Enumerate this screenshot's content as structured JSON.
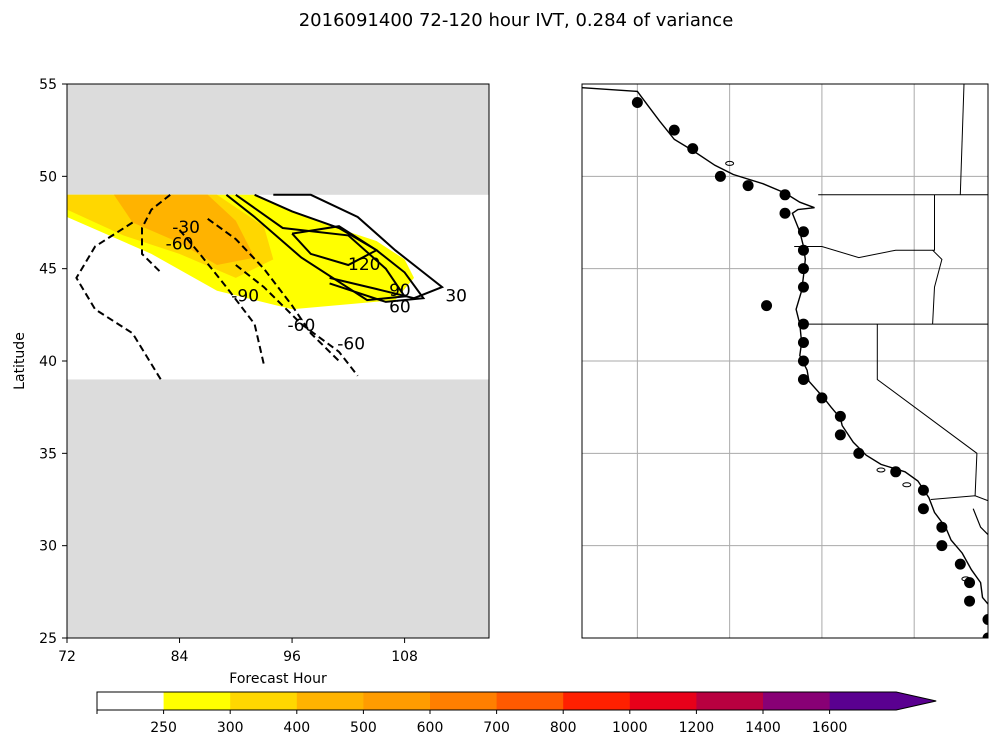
{
  "title": "2016091400 72-120 hour IVT, 0.284 of variance",
  "chart_data": [
    {
      "type": "contour",
      "xlabel": "Forecast Hour",
      "ylabel": "Latitude",
      "xlim": [
        72,
        117
      ],
      "ylim": [
        25,
        55
      ],
      "xticks": [
        "72",
        "84",
        "96",
        "108"
      ],
      "yticks": [
        "25",
        "30",
        "35",
        "40",
        "45",
        "50",
        "55"
      ],
      "data_band_lat": [
        39,
        49
      ],
      "background_color": "#dcdcdc",
      "shading": [
        {
          "level": "250-300",
          "color": "#ffff00",
          "polygon": [
            [
              72,
              49
            ],
            [
              92,
              49
            ],
            [
              99,
              47.5
            ],
            [
              105,
              46.5
            ],
            [
              108,
              45.5
            ],
            [
              109,
              44.5
            ],
            [
              107,
              43.3
            ],
            [
              96,
              42.8
            ],
            [
              88,
              43.8
            ],
            [
              81,
              45.8
            ],
            [
              72,
              47.8
            ]
          ]
        },
        {
          "level": "300-400",
          "color": "#ffd700",
          "polygon": [
            [
              72,
              49
            ],
            [
              88,
              49
            ],
            [
              93,
              47.3
            ],
            [
              94,
              45.5
            ],
            [
              90,
              44.5
            ],
            [
              84,
              45.8
            ],
            [
              78,
              46.8
            ],
            [
              72,
              48.2
            ]
          ]
        },
        {
          "level": "400-500",
          "color": "#ffb300",
          "polygon": [
            [
              77,
              49
            ],
            [
              87,
              49
            ],
            [
              90,
              47.6
            ],
            [
              92,
              45.6
            ],
            [
              88,
              45.2
            ],
            [
              84,
              46.4
            ],
            [
              79,
              47.5
            ]
          ]
        }
      ],
      "contours": [
        {
          "label": "30",
          "style": "solid",
          "points": [
            [
              94,
              49
            ],
            [
              98,
              49
            ],
            [
              103,
              47.8
            ],
            [
              107,
              46
            ],
            [
              110,
              44.8
            ],
            [
              112,
              44
            ],
            [
              109,
              43.4
            ],
            [
              105,
              43.9
            ],
            [
              100,
              44.5
            ]
          ]
        },
        {
          "label": "60",
          "style": "solid",
          "points": [
            [
              92,
              49
            ],
            [
              96,
              48.1
            ],
            [
              101,
              47.2
            ],
            [
              105,
              46
            ],
            [
              108,
              44.8
            ],
            [
              110,
              43.4
            ],
            [
              106,
              43.2
            ],
            [
              100,
              44.2
            ]
          ]
        },
        {
          "label": "90",
          "style": "solid",
          "points": [
            [
              90,
              49
            ],
            [
              95,
              47.2
            ],
            [
              102,
              46.8
            ],
            [
              106,
              45
            ],
            [
              108,
              43.5
            ],
            [
              104,
              43.3
            ],
            [
              97,
              45.6
            ],
            [
              92,
              47.8
            ],
            [
              89,
              49
            ]
          ]
        },
        {
          "label": "120",
          "style": "solid",
          "points": [
            [
              96,
              46.9
            ],
            [
              101,
              47.3
            ],
            [
              105,
              46
            ],
            [
              102,
              45.2
            ],
            [
              98,
              45.8
            ],
            [
              96,
              46.9
            ]
          ]
        },
        {
          "label": "-30",
          "style": "dashed",
          "points": [
            [
              83,
              49
            ],
            [
              81,
              48.2
            ],
            [
              80,
              47.2
            ],
            [
              80,
              45.8
            ],
            [
              82,
              44.8
            ]
          ]
        },
        {
          "label": "-60",
          "style": "dashed",
          "points": [
            [
              79,
              47.5
            ],
            [
              75,
              46.2
            ],
            [
              73,
              44.5
            ],
            [
              75,
              42.8
            ],
            [
              79,
              41.5
            ],
            [
              82,
              39
            ]
          ]
        },
        {
          "label": "-90",
          "style": "dashed",
          "points": [
            [
              84,
              47.1
            ],
            [
              86,
              45.9
            ],
            [
              89,
              44
            ],
            [
              92,
              42
            ],
            [
              93,
              39.8
            ]
          ]
        },
        {
          "label": "-60",
          "style": "dashed",
          "points": [
            [
              87,
              47.7
            ],
            [
              90,
              46.6
            ],
            [
              93,
              45
            ],
            [
              96,
              43
            ],
            [
              98,
              41.5
            ],
            [
              101,
              40
            ]
          ]
        },
        {
          "label": "-60",
          "style": "dashed",
          "points": [
            [
              90,
              45.2
            ],
            [
              93,
              44
            ],
            [
              97,
              42
            ],
            [
              101,
              40.5
            ],
            [
              103,
              39.2
            ]
          ]
        }
      ],
      "contour_labels": [
        {
          "text": "-30",
          "x": 84.7,
          "y": 47.2
        },
        {
          "text": "-60",
          "x": 84,
          "y": 46.3
        },
        {
          "text": "-90",
          "x": 91,
          "y": 43.5
        },
        {
          "text": "-60",
          "x": 97,
          "y": 41.9
        },
        {
          "text": "-60",
          "x": 102.3,
          "y": 40.9
        },
        {
          "text": "120",
          "x": 103.7,
          "y": 45.2
        },
        {
          "text": "90",
          "x": 107.5,
          "y": 43.8
        },
        {
          "text": "60",
          "x": 107.5,
          "y": 42.9
        },
        {
          "text": "30",
          "x": 113.5,
          "y": 43.5
        }
      ]
    },
    {
      "type": "map",
      "xlim": [
        -136,
        -114
      ],
      "ylim": [
        25,
        55
      ],
      "gridlines_lon": [
        -133,
        -128,
        -123,
        -118
      ],
      "gridlines_lat": [
        30,
        35,
        40,
        45,
        50
      ],
      "points": [
        [
          -133,
          54
        ],
        [
          -131,
          52.5
        ],
        [
          -130,
          51.5
        ],
        [
          -128.5,
          50
        ],
        [
          -127,
          49.5
        ],
        [
          -125,
          49
        ],
        [
          -125,
          48
        ],
        [
          -124,
          47
        ],
        [
          -124,
          46
        ],
        [
          -124,
          45
        ],
        [
          -124,
          44
        ],
        [
          -126,
          43
        ],
        [
          -124,
          42
        ],
        [
          -124,
          41
        ],
        [
          -124,
          40
        ],
        [
          -124,
          39
        ],
        [
          -123,
          38
        ],
        [
          -122,
          37
        ],
        [
          -122,
          36
        ],
        [
          -121,
          35
        ],
        [
          -119,
          34
        ],
        [
          -117.5,
          33
        ],
        [
          -117.5,
          32
        ],
        [
          -116.5,
          31
        ],
        [
          -116.5,
          30
        ],
        [
          -115.5,
          29
        ],
        [
          -115,
          28
        ],
        [
          -115,
          27
        ],
        [
          -114,
          26
        ],
        [
          -114,
          25
        ]
      ]
    }
  ],
  "colorbar": {
    "levels": [
      "250",
      "300",
      "400",
      "500",
      "600",
      "700",
      "800",
      "1000",
      "1200",
      "1400",
      "1600"
    ],
    "colors": [
      "#ffffff",
      "#ffff00",
      "#ffd700",
      "#ffb300",
      "#ff9c00",
      "#ff7f00",
      "#ff5a00",
      "#ff2000",
      "#e8001a",
      "#b80040",
      "#880075",
      "#5a0090"
    ]
  }
}
